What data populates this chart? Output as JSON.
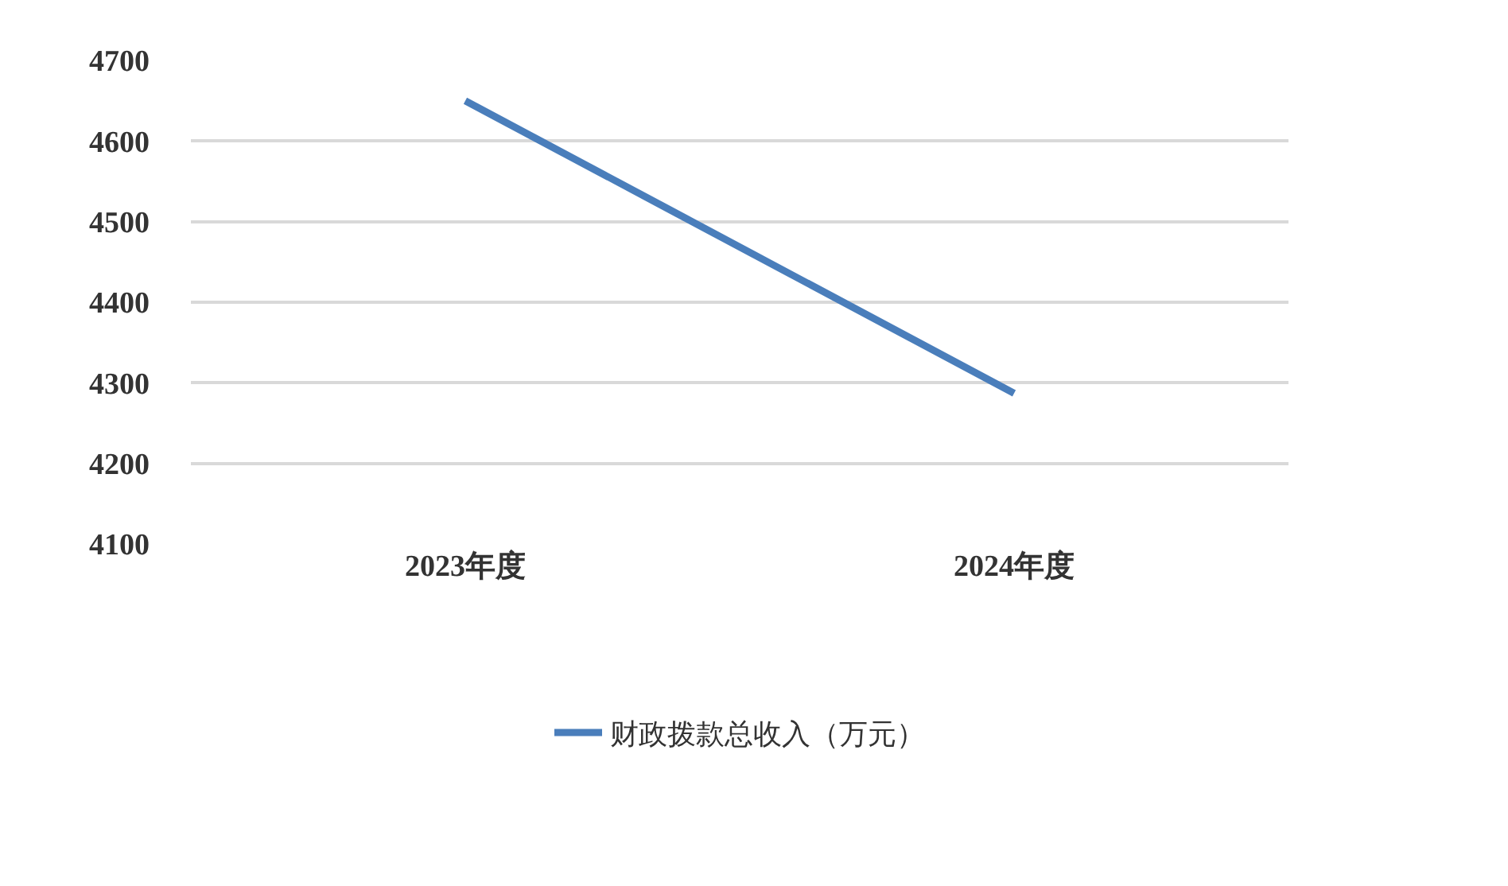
{
  "chart_data": {
    "type": "line",
    "categories": [
      "2023年度",
      "2024年度"
    ],
    "series": [
      {
        "name": "财政拨款总收入（万元）",
        "color": "#4a7ebb",
        "values": [
          4650,
          4287
        ]
      }
    ],
    "ylim": [
      4100,
      4700
    ],
    "yticks": [
      4100,
      4200,
      4300,
      4400,
      4500,
      4600,
      4700
    ],
    "grid": "y",
    "legend": "bottom",
    "marker": "none",
    "line_style": "solid"
  }
}
